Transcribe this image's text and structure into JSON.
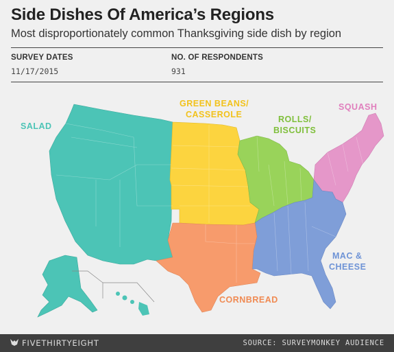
{
  "header": {
    "title": "Side Dishes Of America’s Regions",
    "subtitle": "Most disproportionately common Thanksgiving side dish by region"
  },
  "meta": {
    "survey_dates_label": "SURVEY DATES",
    "survey_dates_value": "11/17/2015",
    "respondents_label": "NO. OF RESPONDENTS",
    "respondents_value": "931"
  },
  "regions": [
    {
      "id": "west",
      "label": "SALAD",
      "color": "#4cc4b6"
    },
    {
      "id": "plains",
      "label_line1": "GREEN BEANS/",
      "label_line2": "CASSEROLE",
      "color": "#fcd43f",
      "label_color": "#f2c21a"
    },
    {
      "id": "midwest",
      "label_line1": "ROLLS/",
      "label_line2": "BISCUITS",
      "color": "#99d35a",
      "label_color": "#7fbf3b"
    },
    {
      "id": "northeast",
      "label": "SQUASH",
      "color": "#e597c9",
      "label_color": "#e07fbd"
    },
    {
      "id": "southeast",
      "label_line1": "MAC &",
      "label_line2": "CHEESE",
      "color": "#7f9ed8",
      "label_color": "#6e93d6"
    },
    {
      "id": "south-central",
      "label": "CORNBREAD",
      "color": "#f79b6c",
      "label_color": "#f08a52"
    }
  ],
  "footer": {
    "brand": "FIVETHIRTYEIGHT",
    "source": "SOURCE: SURVEYMONKEY AUDIENCE"
  }
}
